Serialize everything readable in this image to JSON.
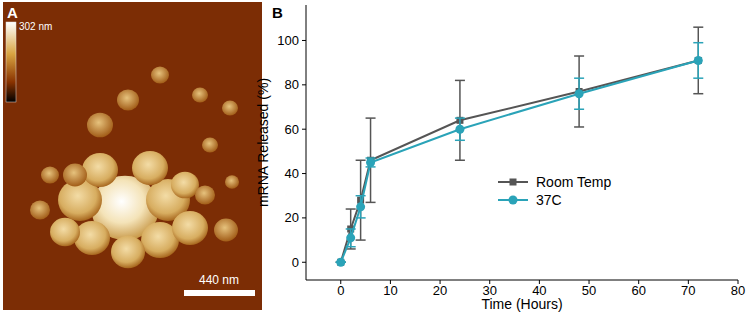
{
  "afm_image": {
    "panel_label": "A",
    "height_scale_label": "302 nm",
    "scale_bar_label": "440 nm"
  },
  "chart_data": {
    "type": "line",
    "title": "B",
    "x_label": "Time (Hours)",
    "y_label": "mRNA Released (%)",
    "x": [
      0,
      2,
      4,
      6,
      24,
      48,
      72
    ],
    "series": [
      {
        "name": "Room Temp",
        "color": "#555555",
        "marker": "square",
        "line_style": "solid",
        "values": [
          0,
          15,
          28,
          46,
          64,
          77,
          91
        ],
        "errors": [
          0,
          9,
          18,
          19,
          18,
          16,
          15
        ]
      },
      {
        "name": "37C",
        "color": "#2aa3b8",
        "marker": "circle",
        "line_style": "solid",
        "values": [
          0,
          11,
          25,
          45,
          60,
          76,
          91
        ],
        "errors": [
          0,
          4,
          5,
          2,
          5,
          7,
          8
        ]
      }
    ],
    "xlim": [
      -7,
      80
    ],
    "xticks": [
      0,
      10,
      20,
      30,
      40,
      50,
      60,
      70,
      80
    ],
    "ylim": [
      -8,
      116
    ],
    "yticks": [
      0,
      20,
      40,
      60,
      80,
      100
    ],
    "grid": false,
    "legend": "right"
  }
}
